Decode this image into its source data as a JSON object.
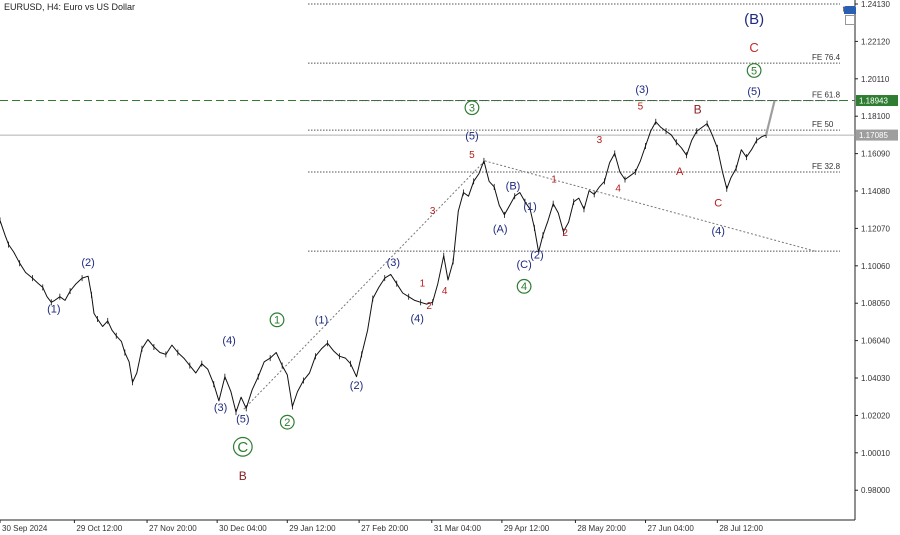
{
  "header": {
    "symbol": "EURUSD",
    "timeframe": "H4",
    "description": "Euro vs US Dollar",
    "title": "EURUSD, H4:  Euro vs US Dollar",
    "corner_label": "t"
  },
  "chart_data": {
    "type": "line",
    "title": "EURUSD, H4:  Euro vs US Dollar",
    "xlabel": "",
    "ylabel": "",
    "ylim": [
      0.964,
      1.2413
    ],
    "y_ticks": [
      "1.24130",
      "1.22120",
      "1.20110",
      "1.18100",
      "1.16090",
      "1.14080",
      "1.12070",
      "1.10060",
      "1.08050",
      "1.06040",
      "1.04030",
      "1.02020",
      "1.00010",
      "0.98000"
    ],
    "x_ticks": [
      "30 Sep 2024",
      "29 Oct 12:00",
      "27 Nov 20:00",
      "30 Dec 04:00",
      "29 Jan 12:00",
      "27 Feb 20:00",
      "31 Mar 04:00",
      "29 Apr 12:00",
      "28 May 20:00",
      "27 Jun 04:00",
      "28 Jul 12:00"
    ],
    "price_tags": [
      {
        "value": "1.18943",
        "color": "#2e7d32"
      },
      {
        "value": "1.17085",
        "color": "#9e9e9e"
      }
    ],
    "horizontal_lines": [
      {
        "label": "1.18943",
        "value": 1.18943,
        "style": "dashed",
        "color": "#2e7d32"
      },
      {
        "label": "1.17085",
        "value": 1.17085,
        "style": "solid",
        "color": "#b0b0b0"
      }
    ],
    "fib_levels": [
      {
        "label": "FE 76.4",
        "value": 1.2095
      },
      {
        "label": "FE 61.8",
        "value": 1.1894
      },
      {
        "label": "FE 50",
        "value": 1.1735
      },
      {
        "label": "FE 32.8",
        "value": 1.151
      },
      {
        "label": "",
        "value": 1.1085
      },
      {
        "label": "",
        "value": 1.2413
      }
    ],
    "series": [
      {
        "color": "#111111",
        "points": [
          [
            0.0,
            1.125
          ],
          [
            0.6,
            1.117
          ],
          [
            1.0,
            1.112
          ],
          [
            1.6,
            1.108
          ],
          [
            2.3,
            1.102
          ],
          [
            3.0,
            1.097
          ],
          [
            3.8,
            1.094
          ],
          [
            4.5,
            1.091
          ],
          [
            5.0,
            1.089
          ],
          [
            5.5,
            1.084
          ],
          [
            6.0,
            1.081
          ],
          [
            6.4,
            1.082
          ],
          [
            7.0,
            1.084
          ],
          [
            7.6,
            1.082
          ],
          [
            8.2,
            1.087
          ],
          [
            8.9,
            1.091
          ],
          [
            9.6,
            1.094
          ],
          [
            10.3,
            1.095
          ],
          [
            10.7,
            1.085
          ],
          [
            11.0,
            1.075
          ],
          [
            11.4,
            1.072
          ],
          [
            12.0,
            1.068
          ],
          [
            12.6,
            1.071
          ],
          [
            13.1,
            1.066
          ],
          [
            13.6,
            1.063
          ],
          [
            14.2,
            1.06
          ],
          [
            14.6,
            1.054
          ],
          [
            15.1,
            1.049
          ],
          [
            15.5,
            1.038
          ],
          [
            16.0,
            1.043
          ],
          [
            16.6,
            1.056
          ],
          [
            17.3,
            1.061
          ],
          [
            18.0,
            1.057
          ],
          [
            18.7,
            1.054
          ],
          [
            19.4,
            1.053
          ],
          [
            20.1,
            1.058
          ],
          [
            20.8,
            1.054
          ],
          [
            21.5,
            1.051
          ],
          [
            22.2,
            1.047
          ],
          [
            22.9,
            1.043
          ],
          [
            23.6,
            1.048
          ],
          [
            24.3,
            1.045
          ],
          [
            25.0,
            1.037
          ],
          [
            25.6,
            1.028
          ],
          [
            26.3,
            1.041
          ],
          [
            27.0,
            1.033
          ],
          [
            27.6,
            1.022
          ],
          [
            28.2,
            1.03
          ],
          [
            28.8,
            1.024
          ],
          [
            29.5,
            1.034
          ],
          [
            30.2,
            1.041
          ],
          [
            30.9,
            1.049
          ],
          [
            31.6,
            1.051
          ],
          [
            32.3,
            1.054
          ],
          [
            33.0,
            1.047
          ],
          [
            33.6,
            1.042
          ],
          [
            34.2,
            1.025
          ],
          [
            34.8,
            1.033
          ],
          [
            35.5,
            1.039
          ],
          [
            36.2,
            1.043
          ],
          [
            36.9,
            1.052
          ],
          [
            37.6,
            1.056
          ],
          [
            38.3,
            1.059
          ],
          [
            39.0,
            1.055
          ],
          [
            39.7,
            1.052
          ],
          [
            40.4,
            1.051
          ],
          [
            41.0,
            1.048
          ],
          [
            41.7,
            1.041
          ],
          [
            42.3,
            1.053
          ],
          [
            43.0,
            1.066
          ],
          [
            43.6,
            1.083
          ],
          [
            44.3,
            1.089
          ],
          [
            45.0,
            1.094
          ],
          [
            45.7,
            1.096
          ],
          [
            46.4,
            1.091
          ],
          [
            47.1,
            1.086
          ],
          [
            47.8,
            1.084
          ],
          [
            48.5,
            1.082
          ],
          [
            49.2,
            1.081
          ],
          [
            49.9,
            1.08
          ],
          [
            50.6,
            1.081
          ],
          [
            51.2,
            1.091
          ],
          [
            51.9,
            1.106
          ],
          [
            52.4,
            1.093
          ],
          [
            53.0,
            1.103
          ],
          [
            53.6,
            1.13
          ],
          [
            54.2,
            1.14
          ],
          [
            54.8,
            1.138
          ],
          [
            55.4,
            1.146
          ],
          [
            56.0,
            1.15
          ],
          [
            56.6,
            1.157
          ],
          [
            57.2,
            1.146
          ],
          [
            57.8,
            1.143
          ],
          [
            58.4,
            1.133
          ],
          [
            59.0,
            1.128
          ],
          [
            59.6,
            1.133
          ],
          [
            60.2,
            1.138
          ],
          [
            60.8,
            1.14
          ],
          [
            61.4,
            1.135
          ],
          [
            62.0,
            1.131
          ],
          [
            62.5,
            1.121
          ],
          [
            63.0,
            1.108
          ],
          [
            63.5,
            1.117
          ],
          [
            64.1,
            1.125
          ],
          [
            64.7,
            1.134
          ],
          [
            65.3,
            1.129
          ],
          [
            65.9,
            1.119
          ],
          [
            66.5,
            1.124
          ],
          [
            67.1,
            1.135
          ],
          [
            67.7,
            1.137
          ],
          [
            68.3,
            1.131
          ],
          [
            68.9,
            1.141
          ],
          [
            69.5,
            1.139
          ],
          [
            70.1,
            1.143
          ],
          [
            70.7,
            1.146
          ],
          [
            71.3,
            1.156
          ],
          [
            71.9,
            1.161
          ],
          [
            72.5,
            1.151
          ],
          [
            73.1,
            1.147
          ],
          [
            73.7,
            1.149
          ],
          [
            74.3,
            1.151
          ],
          [
            74.9,
            1.157
          ],
          [
            75.5,
            1.165
          ],
          [
            76.1,
            1.173
          ],
          [
            76.7,
            1.178
          ],
          [
            77.3,
            1.175
          ],
          [
            77.9,
            1.173
          ],
          [
            78.5,
            1.171
          ],
          [
            79.1,
            1.167
          ],
          [
            79.7,
            1.164
          ],
          [
            80.3,
            1.16
          ],
          [
            80.9,
            1.168
          ],
          [
            81.5,
            1.173
          ],
          [
            82.1,
            1.175
          ],
          [
            82.7,
            1.177
          ],
          [
            83.3,
            1.171
          ],
          [
            83.9,
            1.164
          ],
          [
            84.5,
            1.151
          ],
          [
            85.0,
            1.142
          ],
          [
            85.5,
            1.148
          ],
          [
            86.1,
            1.153
          ],
          [
            86.7,
            1.163
          ],
          [
            87.3,
            1.159
          ],
          [
            87.9,
            1.163
          ],
          [
            88.5,
            1.168
          ],
          [
            89.1,
            1.17
          ],
          [
            89.6,
            1.1709
          ]
        ]
      },
      {
        "name": "projection",
        "color": "#9e9e9e",
        "points": [
          [
            89.6,
            1.1709
          ],
          [
            90.6,
            1.1894
          ]
        ]
      }
    ],
    "trendlines": [
      {
        "style": "dotted",
        "from": [
          28.5,
          1.0235
        ],
        "to": [
          56.7,
          1.157
        ]
      },
      {
        "style": "dotted",
        "from": [
          56.7,
          1.157
        ],
        "to": [
          95.3,
          1.1085
        ]
      }
    ],
    "x_tick_positions": [
      0,
      8.7,
      17.2,
      25.4,
      33.6,
      42.0,
      50.5,
      58.7,
      67.3,
      75.5,
      83.9
    ],
    "annotations": [
      {
        "text": "(1)",
        "x": 6.3,
        "y": 1.0755,
        "color": "#1f2a80",
        "size": 11
      },
      {
        "text": "(2)",
        "x": 10.3,
        "y": 1.1005,
        "color": "#1f2a80",
        "size": 11
      },
      {
        "text": "(3)",
        "x": 25.8,
        "y": 1.0225,
        "color": "#1f2a80",
        "size": 11
      },
      {
        "text": "(4)",
        "x": 26.8,
        "y": 1.0585,
        "color": "#1f2a80",
        "size": 11
      },
      {
        "text": "(5)",
        "x": 28.4,
        "y": 1.0165,
        "color": "#1f2a80",
        "size": 11
      },
      {
        "text": "C",
        "x": 28.4,
        "y": 1.0005,
        "color": "#2e7d32",
        "size": 15,
        "circle": true
      },
      {
        "text": "B",
        "x": 28.4,
        "y": 0.9855,
        "color": "#8b1a1a",
        "size": 12
      },
      {
        "text": "1",
        "x": 32.4,
        "y": 1.0695,
        "color": "#2e7d32",
        "size": 11,
        "circle": true
      },
      {
        "text": "2",
        "x": 33.6,
        "y": 1.0145,
        "color": "#2e7d32",
        "size": 11,
        "circle": true
      },
      {
        "text": "(1)",
        "x": 37.6,
        "y": 1.0695,
        "color": "#1f2a80",
        "size": 11
      },
      {
        "text": "(2)",
        "x": 41.7,
        "y": 1.0345,
        "color": "#1f2a80",
        "size": 11
      },
      {
        "text": "(3)",
        "x": 46.0,
        "y": 1.1005,
        "color": "#1f2a80",
        "size": 11
      },
      {
        "text": "(4)",
        "x": 48.8,
        "y": 1.0705,
        "color": "#1f2a80",
        "size": 11
      },
      {
        "text": "1",
        "x": 49.4,
        "y": 1.0895,
        "color": "#b71c1c",
        "size": 10
      },
      {
        "text": "2",
        "x": 50.2,
        "y": 1.0775,
        "color": "#b71c1c",
        "size": 10
      },
      {
        "text": "3",
        "x": 50.6,
        "y": 1.1285,
        "color": "#b71c1c",
        "size": 10
      },
      {
        "text": "4",
        "x": 52.0,
        "y": 1.0855,
        "color": "#b71c1c",
        "size": 10
      },
      {
        "text": "3",
        "x": 55.2,
        "y": 1.1835,
        "color": "#2e7d32",
        "size": 11,
        "circle": true
      },
      {
        "text": "(5)",
        "x": 55.2,
        "y": 1.1685,
        "color": "#1f2a80",
        "size": 11
      },
      {
        "text": "5",
        "x": 55.2,
        "y": 1.1585,
        "color": "#b71c1c",
        "size": 10
      },
      {
        "text": "(B)",
        "x": 60.0,
        "y": 1.1415,
        "color": "#1f2a80",
        "size": 11
      },
      {
        "text": "(A)",
        "x": 58.5,
        "y": 1.1185,
        "color": "#1f2a80",
        "size": 11
      },
      {
        "text": "(1)",
        "x": 62.0,
        "y": 1.1305,
        "color": "#1f2a80",
        "size": 11
      },
      {
        "text": "(2)",
        "x": 62.8,
        "y": 1.1045,
        "color": "#1f2a80",
        "size": 11
      },
      {
        "text": "(C)",
        "x": 61.3,
        "y": 1.0995,
        "color": "#1f2a80",
        "size": 11
      },
      {
        "text": "4",
        "x": 61.3,
        "y": 1.0875,
        "color": "#2e7d32",
        "size": 11,
        "circle": true
      },
      {
        "text": "1",
        "x": 64.8,
        "y": 1.1455,
        "color": "#b71c1c",
        "size": 10
      },
      {
        "text": "2",
        "x": 66.1,
        "y": 1.1165,
        "color": "#b71c1c",
        "size": 10
      },
      {
        "text": "3",
        "x": 70.1,
        "y": 1.1665,
        "color": "#b71c1c",
        "size": 10
      },
      {
        "text": "4",
        "x": 72.3,
        "y": 1.1405,
        "color": "#b71c1c",
        "size": 10
      },
      {
        "text": "(3)",
        "x": 75.1,
        "y": 1.1935,
        "color": "#1f2a80",
        "size": 11
      },
      {
        "text": "5",
        "x": 74.9,
        "y": 1.1845,
        "color": "#b71c1c",
        "size": 10
      },
      {
        "text": "A",
        "x": 79.5,
        "y": 1.1495,
        "color": "#b71c1c",
        "size": 11
      },
      {
        "text": "B",
        "x": 81.6,
        "y": 1.1825,
        "color": "#8b1a1a",
        "size": 12
      },
      {
        "text": "C",
        "x": 84.0,
        "y": 1.1325,
        "color": "#b71c1c",
        "size": 11
      },
      {
        "text": "(4)",
        "x": 84.0,
        "y": 1.1175,
        "color": "#1f2a80",
        "size": 11
      },
      {
        "text": "(5)",
        "x": 88.2,
        "y": 1.1925,
        "color": "#1f2a80",
        "size": 11
      },
      {
        "text": "5",
        "x": 88.2,
        "y": 1.2035,
        "color": "#2e7d32",
        "size": 11,
        "circle": true
      },
      {
        "text": "C",
        "x": 88.2,
        "y": 1.2155,
        "color": "#c62828",
        "size": 13
      },
      {
        "text": "(B)",
        "x": 88.2,
        "y": 1.2305,
        "color": "#1f2a80",
        "size": 15
      }
    ]
  }
}
